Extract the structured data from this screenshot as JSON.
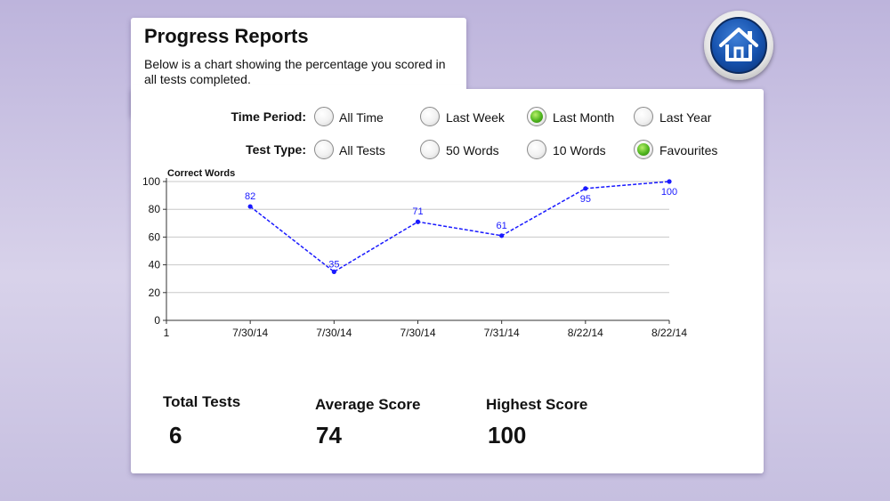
{
  "page": {
    "title": "Progress Reports",
    "description": "Below is a chart showing the percentage you scored in all tests completed."
  },
  "filters": {
    "time_period": {
      "label": "Time Period:",
      "options": [
        {
          "label": "All Time",
          "selected": false
        },
        {
          "label": "Last Week",
          "selected": false
        },
        {
          "label": "Last Month",
          "selected": true
        },
        {
          "label": "Last Year",
          "selected": false
        }
      ]
    },
    "test_type": {
      "label": "Test Type:",
      "options": [
        {
          "label": "All Tests",
          "selected": false
        },
        {
          "label": "50 Words",
          "selected": false
        },
        {
          "label": "10 Words",
          "selected": false
        },
        {
          "label": "Favourites",
          "selected": true
        }
      ]
    }
  },
  "chart_data": {
    "type": "line",
    "ylabel": "Correct Words",
    "ylim": [
      0,
      100
    ],
    "yticks": [
      0,
      20,
      40,
      60,
      80,
      100
    ],
    "x_start_label": "1",
    "x": [
      "7/30/14",
      "7/30/14",
      "7/30/14",
      "7/31/14",
      "8/22/14",
      "8/22/14"
    ],
    "series": [
      {
        "values": [
          82,
          35,
          71,
          61,
          95,
          100
        ],
        "labels": [
          "82",
          "35",
          "71",
          "61",
          "95",
          "100"
        ],
        "color": "#1a1aff",
        "style": "dashed"
      }
    ],
    "grid": true
  },
  "stats": {
    "total_tests": {
      "label": "Total Tests",
      "value": "6"
    },
    "average_score": {
      "label": "Average Score",
      "value": "74"
    },
    "highest_score": {
      "label": "Highest Score",
      "value": "100"
    }
  },
  "icons": {
    "home": "home-icon"
  },
  "colors": {
    "accent": "#1551ad",
    "selected": "#4fb51e",
    "series": "#1a1aff"
  }
}
